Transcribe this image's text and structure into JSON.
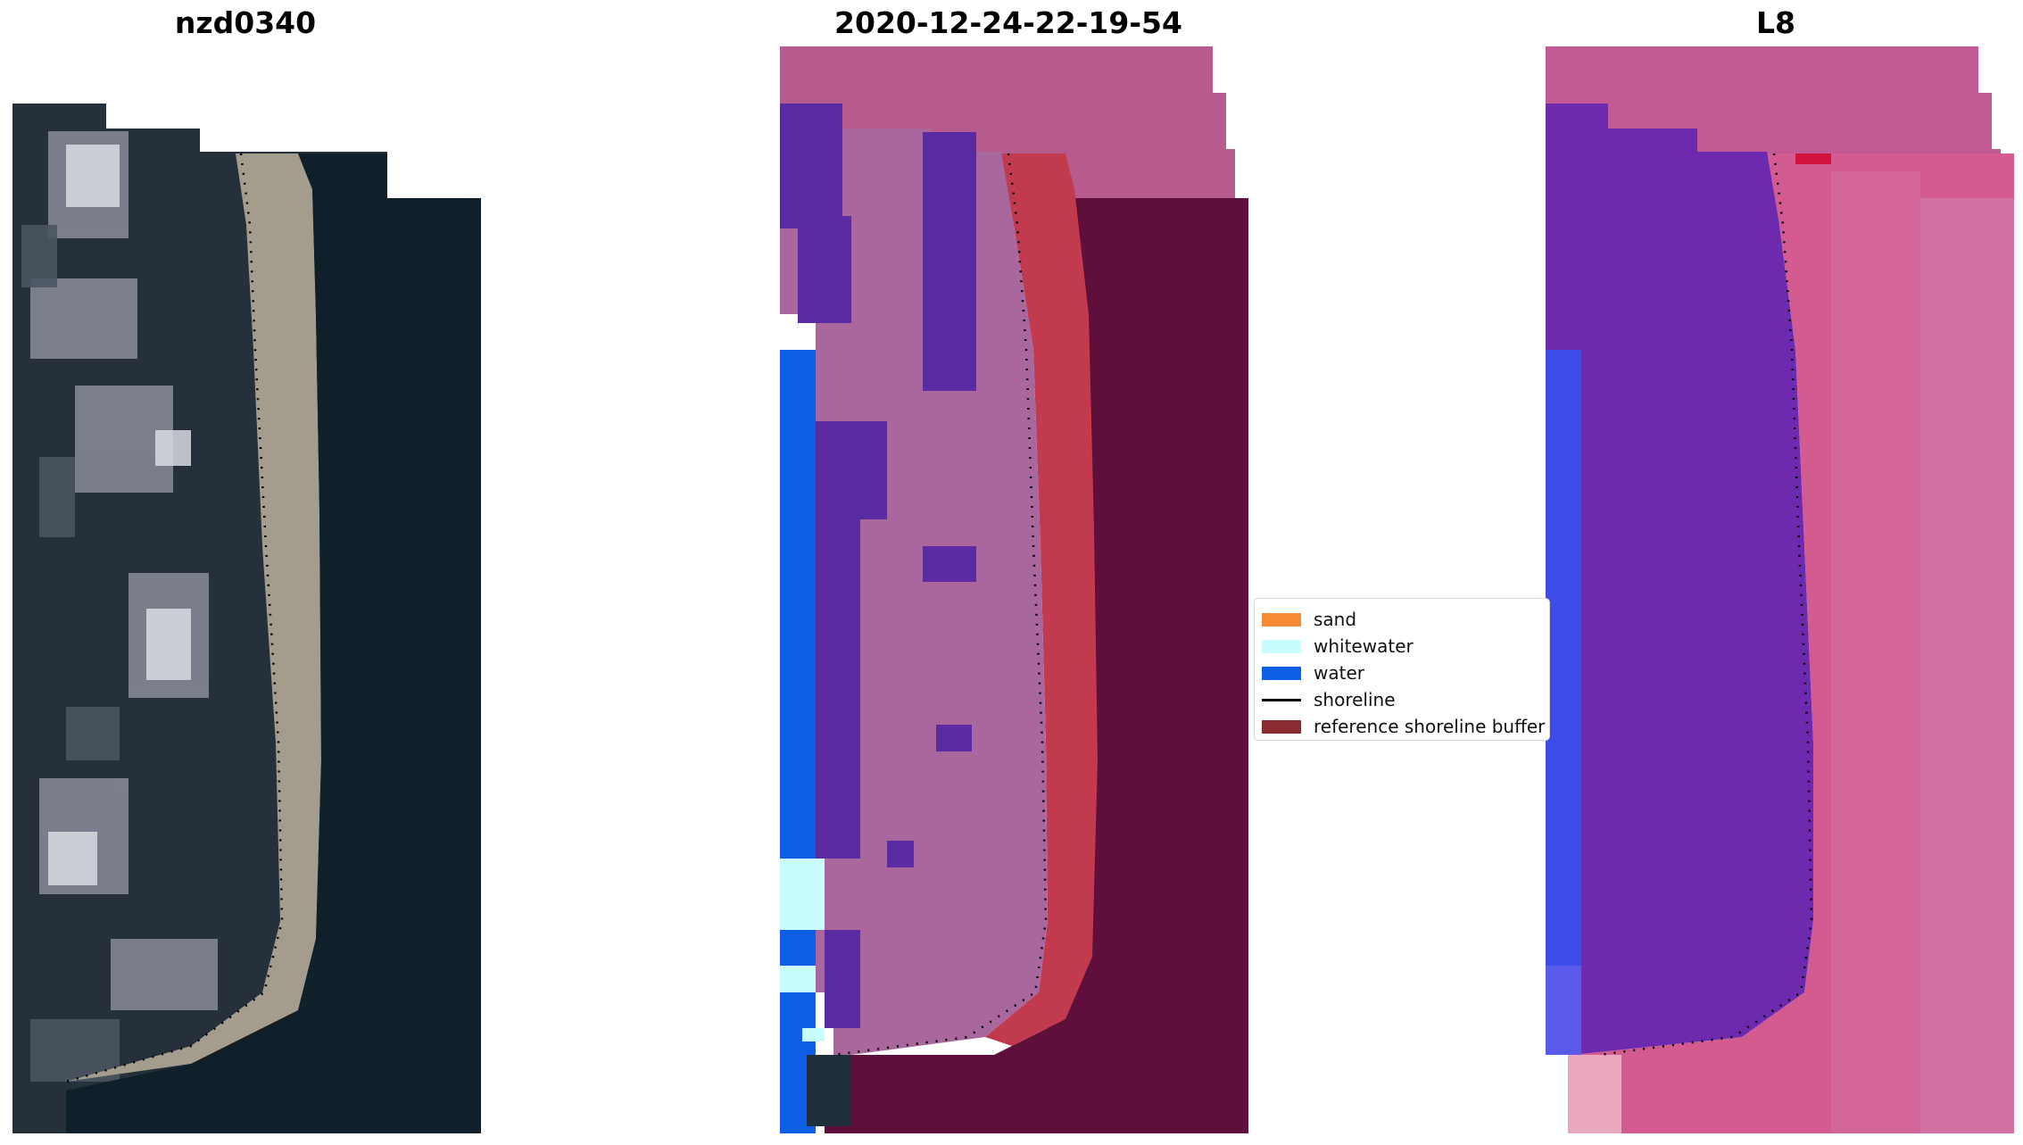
{
  "panels": [
    {
      "title": "nzd0340",
      "kind": "rgb-satellite"
    },
    {
      "title": "2020-12-24-22-19-54",
      "kind": "classified"
    },
    {
      "title": "L8",
      "kind": "index"
    }
  ],
  "legend": {
    "items": [
      {
        "label": "sand",
        "color": "#f68b35",
        "kind": "patch"
      },
      {
        "label": "whitewater",
        "color": "#c9fdfd",
        "kind": "patch"
      },
      {
        "label": "water",
        "color": "#0f5ee6",
        "kind": "patch"
      },
      {
        "label": "shoreline",
        "color": "#000000",
        "kind": "line"
      },
      {
        "label": "reference shoreline buffer",
        "color": "#8c2a32",
        "kind": "patch"
      }
    ]
  },
  "colors": {
    "ocean_dark": "#10202b",
    "beach_sand": "#a49c8c",
    "class_top": "#b75a8e",
    "class_land": "#a9679e",
    "class_vegetation": "#5a2aa0",
    "class_water": "#0f5ee6",
    "class_whitewater": "#c9fdfd",
    "class_buffer": "#c23a4e",
    "class_ocean": "#5e0f3c",
    "index_purple": "#6e2aae",
    "index_pink": "#d35b8f",
    "index_blue": "#3d4be8"
  }
}
